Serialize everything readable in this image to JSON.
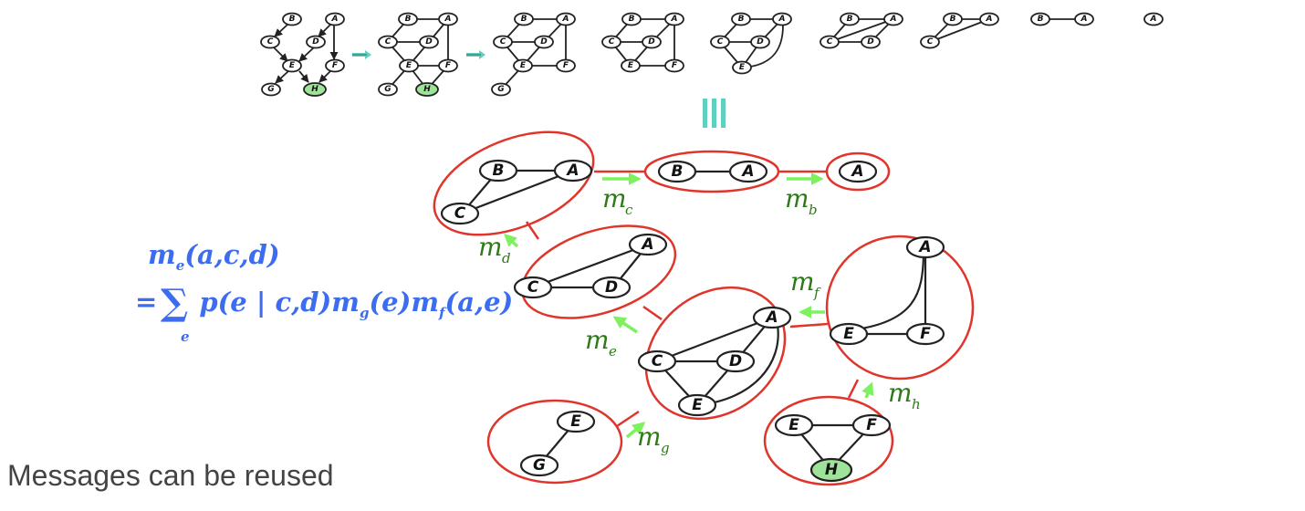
{
  "caption": "Messages can be reused",
  "formula": {
    "lhs": "m",
    "lhs_sub": "e",
    "lhs_args": "(a,c,d)",
    "eq": "=",
    "sum": "∑",
    "sum_index": "e",
    "body_p": "p(e | c,d)",
    "body_m1": "m",
    "body_m1_sub": "g",
    "body_m1_args": "(e)",
    "body_m2": "m",
    "body_m2_sub": "f",
    "body_m2_args": "(a,e)"
  },
  "equivalence_symbol": "≡",
  "elimination_steps": [
    {
      "nodes": [
        "B",
        "A",
        "C",
        "D",
        "E",
        "F",
        "G",
        "H"
      ],
      "directed": true
    },
    {
      "nodes": [
        "B",
        "A",
        "C",
        "D",
        "E",
        "F",
        "G",
        "H"
      ],
      "directed": false
    },
    {
      "nodes": [
        "B",
        "A",
        "C",
        "D",
        "E",
        "F",
        "G"
      ]
    },
    {
      "nodes": [
        "B",
        "A",
        "C",
        "D",
        "E",
        "F"
      ]
    },
    {
      "nodes": [
        "B",
        "A",
        "C",
        "D",
        "E"
      ]
    },
    {
      "nodes": [
        "B",
        "A",
        "C",
        "D"
      ]
    },
    {
      "nodes": [
        "B",
        "A",
        "C"
      ]
    },
    {
      "nodes": [
        "B",
        "A"
      ]
    },
    {
      "nodes": [
        "A"
      ]
    }
  ],
  "observed_node": "A",
  "evidence_node": "H",
  "cliques": [
    {
      "name": "BAC",
      "nodes": [
        "B",
        "A",
        "C"
      ]
    },
    {
      "name": "BA",
      "nodes": [
        "B",
        "A"
      ]
    },
    {
      "name": "A",
      "nodes": [
        "A"
      ]
    },
    {
      "name": "ACD",
      "nodes": [
        "A",
        "C",
        "D"
      ]
    },
    {
      "name": "ACDE",
      "nodes": [
        "A",
        "C",
        "D",
        "E"
      ]
    },
    {
      "name": "AEF",
      "nodes": [
        "A",
        "E",
        "F"
      ]
    },
    {
      "name": "EG",
      "nodes": [
        "E",
        "G"
      ]
    },
    {
      "name": "EFH",
      "nodes": [
        "E",
        "F",
        "H"
      ]
    }
  ],
  "messages": [
    {
      "label": "m",
      "sub": "c"
    },
    {
      "label": "m",
      "sub": "b"
    },
    {
      "label": "m",
      "sub": "d"
    },
    {
      "label": "m",
      "sub": "f"
    },
    {
      "label": "m",
      "sub": "e"
    },
    {
      "label": "m",
      "sub": "h"
    },
    {
      "label": "m",
      "sub": "g"
    }
  ],
  "colors": {
    "clique": "#e0352b",
    "message_arrow": "#7df25e",
    "message_label": "#2d7a18",
    "formula": "#3c6df0",
    "observed_fill": "#c9e9e5",
    "evidence_fill": "#9fe39a",
    "equiv": "#5fcfc0"
  }
}
